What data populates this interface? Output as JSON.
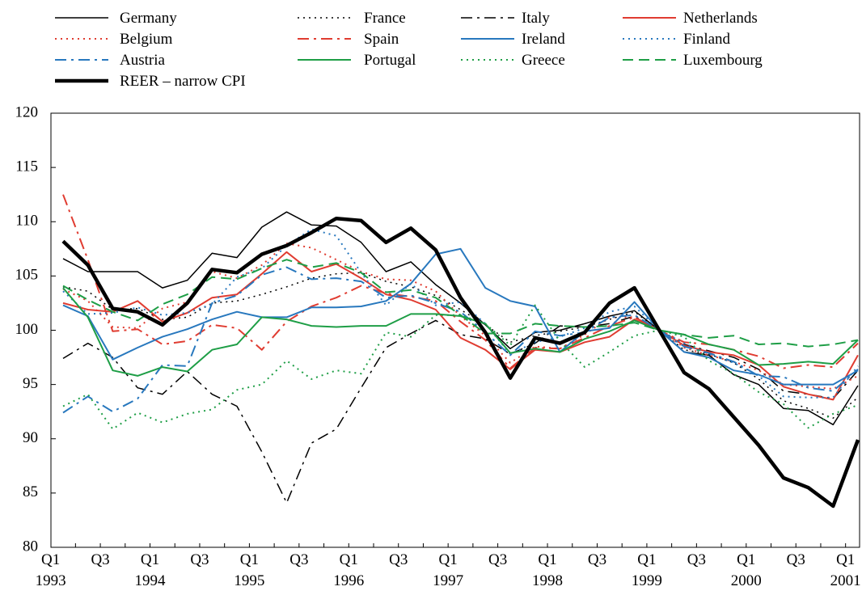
{
  "chart_data": {
    "type": "line",
    "categories": [
      "Q1",
      null,
      "Q3",
      null,
      "Q1",
      null,
      "Q3",
      null,
      "Q1",
      null,
      "Q3",
      null,
      "Q1",
      null,
      "Q3",
      null,
      "Q1",
      null,
      "Q3",
      null,
      "Q1",
      null,
      "Q3",
      null,
      "Q1",
      null,
      "Q3",
      null,
      "Q1",
      null,
      "Q3",
      null,
      "Q1"
    ],
    "category_years": [
      "1993",
      null,
      null,
      null,
      "1994",
      null,
      null,
      null,
      "1995",
      null,
      null,
      null,
      "1996",
      null,
      null,
      null,
      "1997",
      null,
      null,
      null,
      "1998",
      null,
      null,
      null,
      "1999",
      null,
      null,
      null,
      "2000",
      null,
      null,
      null,
      "2001"
    ],
    "ylim": [
      80,
      120
    ],
    "yticks": [
      80,
      85,
      90,
      95,
      100,
      105,
      110,
      115,
      120
    ],
    "series": [
      {
        "name": "Germany",
        "color": "#000000",
        "dash": "solid",
        "width": 1.5,
        "values": [
          106.6,
          105.4,
          105.4,
          105.4,
          103.9,
          104.6,
          107.1,
          106.7,
          109.5,
          110.9,
          109.7,
          109.6,
          108.1,
          105.4,
          106.3,
          104.2,
          102.5,
          100.5,
          98.3,
          99.8,
          100,
          100.6,
          101.3,
          101.8,
          100,
          98,
          97.7,
          95.9,
          95,
          92.8,
          92.6,
          91.3,
          94.9
        ]
      },
      {
        "name": "France",
        "color": "#000000",
        "dash": "dotted",
        "width": 1.5,
        "values": [
          104,
          103.6,
          101.9,
          102,
          101,
          101.2,
          102.5,
          102.7,
          103.3,
          104,
          104.8,
          105.2,
          105.3,
          104.5,
          104,
          103.2,
          101.9,
          100.5,
          98.9,
          99.5,
          99.9,
          100.3,
          101,
          101.7,
          100,
          98.2,
          97.8,
          97,
          95.5,
          93.5,
          92.8,
          91.9,
          93.8
        ]
      },
      {
        "name": "Italy",
        "color": "#000000",
        "dash": "dashdot",
        "width": 1.5,
        "values": [
          97.4,
          98.8,
          97.5,
          94.7,
          94.1,
          96.2,
          94.1,
          93,
          88.8,
          84.1,
          89.6,
          90.9,
          94.7,
          98.4,
          99.7,
          100.9,
          99.6,
          99.2,
          97.8,
          98.8,
          100.4,
          100.3,
          100.6,
          101.3,
          100,
          98.7,
          98.1,
          97.5,
          96.4,
          94.4,
          94.1,
          93.7,
          96.3
        ]
      },
      {
        "name": "Netherlands",
        "color": "#e03c31",
        "dash": "solid",
        "width": 2,
        "values": [
          102.5,
          101.9,
          101.7,
          102.7,
          100.8,
          101.6,
          103,
          103.3,
          105.2,
          107.2,
          105.4,
          106.1,
          104.8,
          103.3,
          102.8,
          101.9,
          99.3,
          98.2,
          96.4,
          98.2,
          98,
          98.9,
          99.4,
          101,
          100,
          98.6,
          98,
          97.7,
          96.8,
          94.8,
          94.1,
          93.6,
          97.7
        ]
      },
      {
        "name": "Belgium",
        "color": "#e03c31",
        "dash": "dotted",
        "width": 2,
        "values": [
          103.8,
          102.7,
          100.3,
          100.2,
          102,
          102.6,
          105.4,
          104.8,
          106,
          108,
          107.6,
          106.5,
          105.4,
          104.7,
          104.6,
          103.6,
          101.3,
          99.5,
          97,
          98.5,
          98.3,
          99.6,
          101.2,
          101.2,
          100,
          98.4,
          97.7,
          97.1,
          96.3,
          95,
          94.8,
          94.6,
          95.8
        ]
      },
      {
        "name": "Spain",
        "color": "#e03c31",
        "dash": "dashdot",
        "width": 2,
        "values": [
          112.5,
          106.5,
          99.9,
          100.1,
          98.7,
          99,
          100.5,
          100.2,
          98.2,
          100.8,
          102.2,
          103,
          104.1,
          103.4,
          103.1,
          102.7,
          100.8,
          99.1,
          96.5,
          98.4,
          98.3,
          99.3,
          100.4,
          101.2,
          100,
          98.9,
          98.7,
          98.2,
          97.6,
          96.5,
          96.8,
          96.6,
          98.8
        ]
      },
      {
        "name": "Ireland",
        "color": "#2878be",
        "dash": "solid",
        "width": 2,
        "values": [
          102.3,
          101.3,
          97.3,
          98.4,
          99.4,
          100.1,
          101,
          101.7,
          101.2,
          101.2,
          102.1,
          102.1,
          102.2,
          102.7,
          104.3,
          107,
          107.5,
          103.9,
          102.7,
          102.2,
          98,
          99.9,
          100.2,
          102.6,
          100,
          98,
          97.5,
          96.3,
          95.9,
          95,
          95,
          95,
          96.3
        ]
      },
      {
        "name": "Finland",
        "color": "#2878be",
        "dash": "dotted",
        "width": 2,
        "values": [
          103.6,
          101.5,
          101.6,
          102.1,
          101.4,
          101.6,
          102.4,
          104.9,
          105.7,
          107.8,
          109.3,
          108.7,
          105.3,
          102.3,
          104.3,
          102.3,
          102.6,
          100.6,
          97.8,
          98.9,
          99.4,
          100.2,
          101.7,
          102.2,
          100,
          98.8,
          97.8,
          97,
          95.8,
          93.9,
          93.8,
          93.8,
          96.7
        ]
      },
      {
        "name": "Austria",
        "color": "#2878be",
        "dash": "dashdot",
        "width": 2,
        "values": [
          92.4,
          93.9,
          92.5,
          93.7,
          96.8,
          96.7,
          102.5,
          103.2,
          105.1,
          105.8,
          104.7,
          104.8,
          104.5,
          103,
          103.2,
          102.5,
          101.7,
          99.8,
          97.7,
          99.9,
          99.5,
          99.8,
          101.2,
          101.4,
          100,
          98.5,
          97.9,
          97.1,
          95.8,
          95.7,
          94.7,
          94.4,
          96.4
        ]
      },
      {
        "name": "Portugal",
        "color": "#1e9e46",
        "dash": "solid",
        "width": 2,
        "values": [
          103.9,
          101.2,
          96.3,
          95.8,
          96.6,
          96.2,
          98.2,
          98.7,
          101.2,
          101,
          100.4,
          100.3,
          100.4,
          100.4,
          101.5,
          101.5,
          101.3,
          100.6,
          97.9,
          98.3,
          98,
          99.2,
          99.9,
          100.9,
          100,
          99.6,
          98.7,
          98.2,
          96.8,
          96.9,
          97.1,
          96.9,
          99.1
        ]
      },
      {
        "name": "Greece",
        "color": "#1e9e46",
        "dash": "dotted",
        "width": 2,
        "values": [
          93,
          94.1,
          90.9,
          92.4,
          91.5,
          92.3,
          92.7,
          94.5,
          95,
          97.2,
          95.5,
          96.3,
          96,
          99.8,
          99.4,
          101.4,
          101.4,
          100.6,
          98.6,
          102.3,
          99,
          96.6,
          98,
          99.5,
          100,
          99.4,
          97.2,
          96,
          94.3,
          93.2,
          91,
          92.3,
          93.1
        ]
      },
      {
        "name": "Luxembourg",
        "color": "#1e9e46",
        "dash": "dashed",
        "width": 2,
        "values": [
          104.1,
          102.8,
          101.7,
          100.9,
          102.4,
          103.3,
          104.9,
          104.7,
          105.7,
          106.5,
          105.8,
          106.2,
          105.3,
          103.5,
          103.7,
          103,
          101.4,
          99.7,
          99.7,
          100.6,
          100.4,
          100.3,
          100.4,
          100.7,
          100,
          99.6,
          99.3,
          99.5,
          98.7,
          98.8,
          98.5,
          98.7,
          99.1
        ]
      },
      {
        "name": "REER – narrow CPI",
        "color": "#000000",
        "dash": "solid",
        "width": 4.5,
        "values": [
          108.2,
          106,
          102,
          101.7,
          100.5,
          102.5,
          105.6,
          105.3,
          107,
          107.8,
          109,
          110.3,
          110.1,
          108.1,
          109.4,
          107.4,
          103,
          99.8,
          95.6,
          99.3,
          98.8,
          99.8,
          102.5,
          103.9,
          100,
          96.1,
          94.6,
          92,
          89.4,
          86.4,
          85.5,
          83.8,
          89.9
        ]
      }
    ]
  }
}
